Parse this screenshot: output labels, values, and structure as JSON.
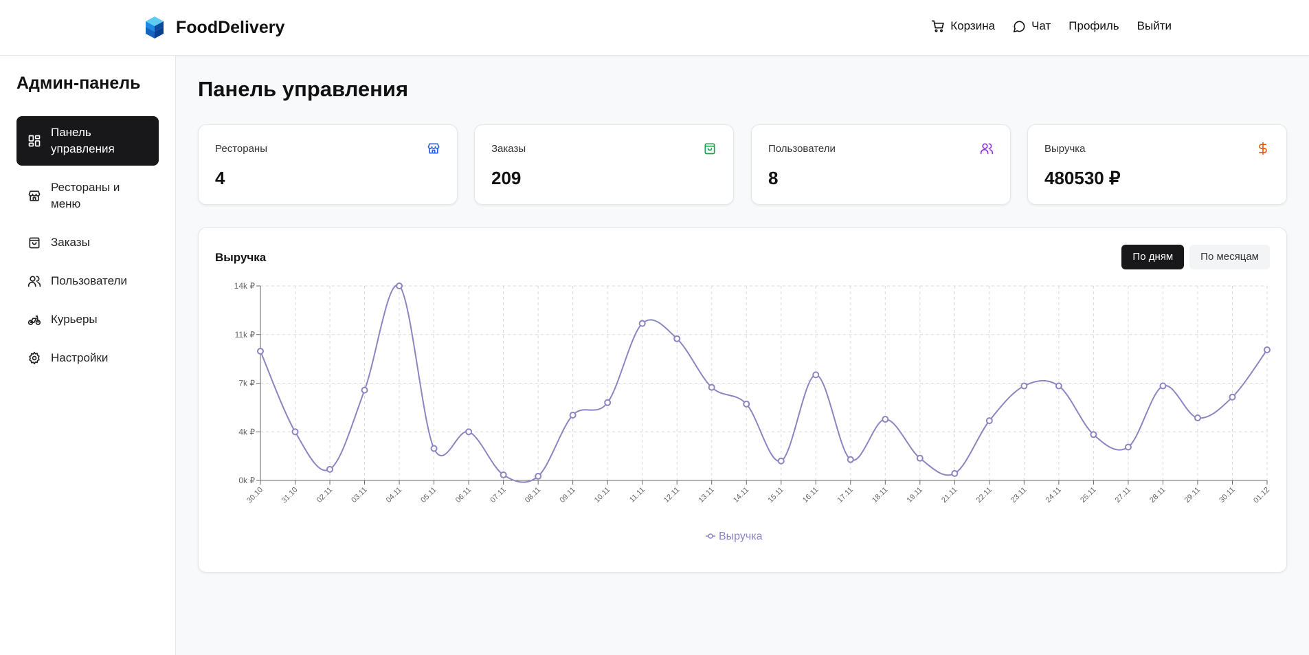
{
  "header": {
    "brand": "FoodDelivery",
    "nav": [
      {
        "label": "Корзина",
        "icon": "cart-icon"
      },
      {
        "label": "Чат",
        "icon": "chat-icon"
      },
      {
        "label": "Профиль"
      },
      {
        "label": "Выйти"
      }
    ]
  },
  "sidebar": {
    "title": "Админ-панель",
    "items": [
      {
        "label": "Панель управления",
        "icon": "dashboard-icon",
        "active": true
      },
      {
        "label": "Рестораны и меню",
        "icon": "store-icon"
      },
      {
        "label": "Заказы",
        "icon": "shopping-bag-icon"
      },
      {
        "label": "Пользователи",
        "icon": "users-icon"
      },
      {
        "label": "Курьеры",
        "icon": "bike-icon"
      },
      {
        "label": "Настройки",
        "icon": "gear-icon"
      }
    ]
  },
  "main": {
    "title": "Панель управления",
    "stats": [
      {
        "label": "Рестораны",
        "value": "4",
        "icon": "store-icon",
        "color": "#2563eb"
      },
      {
        "label": "Заказы",
        "value": "209",
        "icon": "shopping-bag-icon",
        "color": "#16a34a"
      },
      {
        "label": "Пользователи",
        "value": "8",
        "icon": "users-icon",
        "color": "#9333ea"
      },
      {
        "label": "Выручка",
        "value": "480530 ₽",
        "icon": "dollar-icon",
        "color": "#ea580c"
      }
    ],
    "chart_card": {
      "title": "Выручка",
      "toggle": [
        {
          "label": "По дням",
          "active": true
        },
        {
          "label": "По месяцам",
          "active": false
        }
      ]
    }
  },
  "colors": {
    "series": "#8b85c1",
    "active_bg": "#18181b"
  },
  "chart_data": {
    "type": "line",
    "x": [
      "30.10",
      "31.10",
      "02.11",
      "03.11",
      "04.11",
      "05.11",
      "06.11",
      "07.11",
      "08.11",
      "09.11",
      "10.11",
      "11.11",
      "12.11",
      "13.11",
      "14.11",
      "15.11",
      "16.11",
      "17.11",
      "18.11",
      "19.11",
      "21.11",
      "22.11",
      "23.11",
      "24.11",
      "25.11",
      "27.11",
      "28.11",
      "29.11",
      "30.11",
      "01.12"
    ],
    "series": [
      {
        "name": "Выручка",
        "values": [
          9300,
          3500,
          800,
          6500,
          14000,
          2300,
          3500,
          400,
          300,
          4700,
          5600,
          11300,
          10200,
          6700,
          5500,
          1400,
          7600,
          1500,
          4400,
          1600,
          500,
          4300,
          6800,
          6800,
          3300,
          2400,
          6800,
          4500,
          6000,
          9400
        ]
      }
    ],
    "yticks": [
      "0k ₽",
      "4k ₽",
      "7k ₽",
      "11k ₽",
      "14k ₽"
    ],
    "ylim": [
      0,
      14000
    ],
    "grid": true,
    "legend": "bottom"
  }
}
